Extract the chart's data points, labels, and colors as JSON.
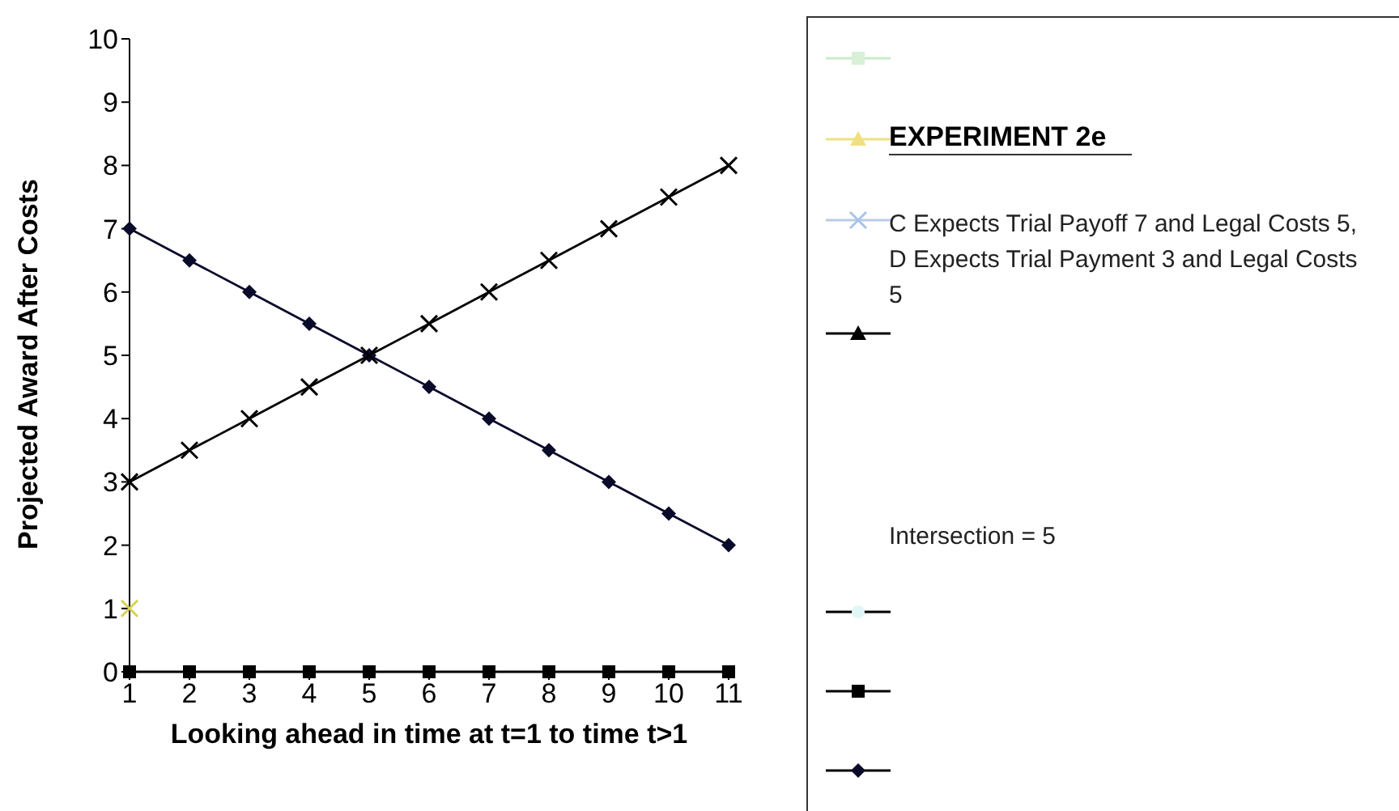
{
  "chart_data": {
    "type": "line",
    "title": "EXPERIMENT 2e",
    "xlabel": "Looking ahead in time at t=1 to time t>1",
    "ylabel": "Projected Award After Costs",
    "annotations": [
      "C Expects Trial Payoff 7 and Legal Costs 5, D Expects Trial Payment 3 and Legal Costs 5",
      "Intersection = 5"
    ],
    "x": [
      1,
      2,
      3,
      4,
      5,
      6,
      7,
      8,
      9,
      10,
      11
    ],
    "xlim": [
      1,
      11
    ],
    "xticks": [
      1,
      2,
      3,
      4,
      5,
      6,
      7,
      8,
      9,
      10,
      11
    ],
    "ylim": [
      0,
      10
    ],
    "yticks": [
      0,
      1,
      2,
      3,
      4,
      5,
      6,
      7,
      8,
      9,
      10
    ],
    "grid": false,
    "series": [
      {
        "color": "#0a0a2a",
        "marker": "diamond",
        "values": [
          7,
          6.5,
          6,
          5.5,
          5,
          4.5,
          4,
          3.5,
          3,
          2.5,
          2
        ]
      },
      {
        "color": "#000000",
        "marker": "cross",
        "values": [
          3,
          3.5,
          4,
          4.5,
          5,
          5.5,
          6,
          6.5,
          7,
          7.5,
          8
        ]
      },
      {
        "color": "#000000",
        "marker": "square",
        "values": [
          0,
          0,
          0,
          0,
          0,
          0,
          0,
          0,
          0,
          0,
          0
        ]
      },
      {
        "type": "scatter",
        "color": "#d8d050",
        "marker": "cross",
        "x": [
          1
        ],
        "values": [
          1
        ]
      }
    ]
  }
}
